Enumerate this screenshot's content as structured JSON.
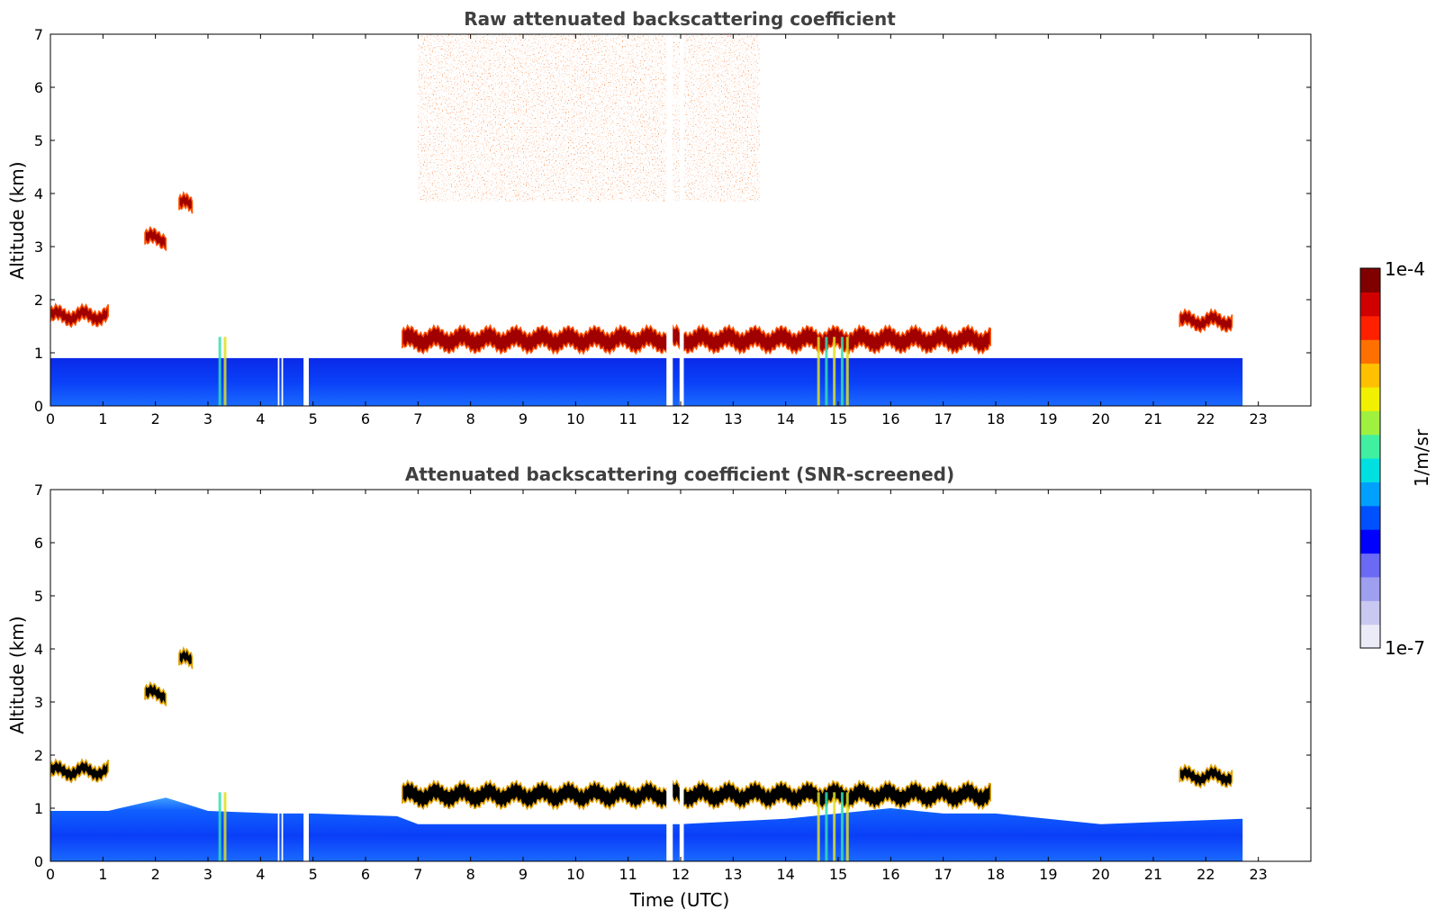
{
  "chart_data": [
    {
      "type": "heatmap",
      "title": "Raw attenuated backscattering coefficient",
      "xlabel": "",
      "ylabel": "Altitude (km)",
      "xlim": [
        0,
        24
      ],
      "ylim": [
        0,
        7
      ],
      "x_ticks": [
        "0",
        "1",
        "2",
        "3",
        "4",
        "5",
        "6",
        "7",
        "8",
        "9",
        "10",
        "11",
        "12",
        "13",
        "14",
        "15",
        "16",
        "17",
        "18",
        "19",
        "20",
        "21",
        "22",
        "23"
      ],
      "y_ticks": [
        "0",
        "1",
        "2",
        "3",
        "4",
        "5",
        "6",
        "7"
      ],
      "data_extent_hours": [
        0,
        22.7
      ],
      "gaps_hours": [
        [
          4.33,
          4.36
        ],
        [
          4.4,
          4.43
        ],
        [
          4.82,
          4.92
        ],
        [
          11.73,
          11.85
        ],
        [
          11.98,
          12.06
        ]
      ],
      "features": [
        {
          "name": "boundary layer aerosol",
          "t_start": 0,
          "t_end": 22.7,
          "alt_bottom_km": 0,
          "alt_top_km": 0.9
        },
        {
          "name": "cloud layer",
          "t_start": 6.7,
          "t_end": 17.9,
          "alt_km": 1.25
        },
        {
          "name": "cloud",
          "t_start": 21.5,
          "t_end": 22.5,
          "alt_km": 1.6
        },
        {
          "name": "cloud",
          "t_start": 1.8,
          "t_end": 2.2,
          "alt_km": 3.15
        },
        {
          "name": "cloud",
          "t_start": 2.45,
          "t_end": 2.7,
          "alt_km": 3.8
        },
        {
          "name": "cloud",
          "t_start": 0,
          "t_end": 1.1,
          "alt_km": 1.7
        }
      ],
      "grid": false
    },
    {
      "type": "heatmap",
      "title": "Attenuated backscattering coefficient (SNR-screened)",
      "xlabel": "Time (UTC)",
      "ylabel": "Altitude (km)",
      "xlim": [
        0,
        24
      ],
      "ylim": [
        0,
        7
      ],
      "x_ticks": [
        "0",
        "1",
        "2",
        "3",
        "4",
        "5",
        "6",
        "7",
        "8",
        "9",
        "10",
        "11",
        "12",
        "13",
        "14",
        "15",
        "16",
        "17",
        "18",
        "19",
        "20",
        "21",
        "22",
        "23"
      ],
      "y_ticks": [
        "0",
        "1",
        "2",
        "3",
        "4",
        "5",
        "6",
        "7"
      ],
      "data_extent_hours": [
        0,
        22.7
      ],
      "grid": false
    }
  ],
  "colorbar": {
    "label": "1/m/sr",
    "max_label": "1e-4",
    "min_label": "1e-7",
    "scale": "log",
    "colormap": [
      "#ebebf8",
      "#c8c8f0",
      "#9f9ff0",
      "#6a6af5",
      "#0000ff",
      "#0050ff",
      "#00a0ff",
      "#00e0e0",
      "#40f0a0",
      "#a0f040",
      "#f0f000",
      "#ffc000",
      "#ff7000",
      "#ff2000",
      "#d00000",
      "#800000"
    ]
  },
  "colors": {
    "title": "#404040",
    "axes": "#000000",
    "cloud_edge": "#000000"
  }
}
